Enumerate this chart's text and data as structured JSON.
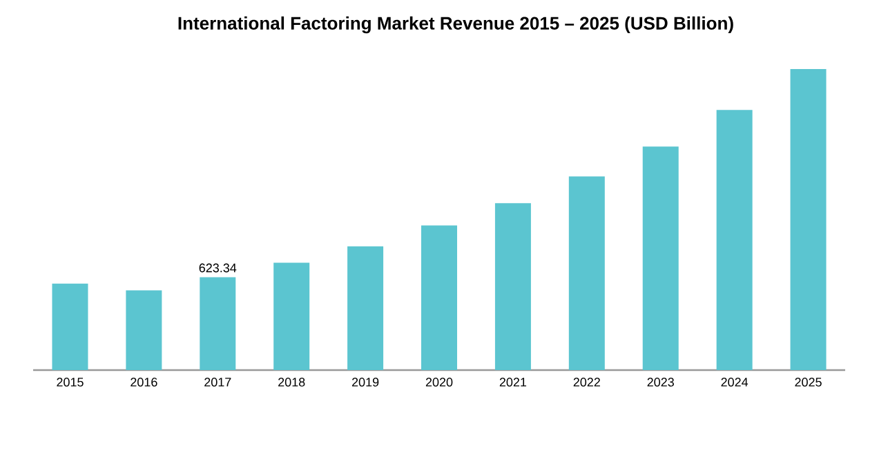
{
  "chart_data": {
    "type": "bar",
    "title": "International Factoring Market Revenue 2015 – 2025 (USD Billion)",
    "categories": [
      "2015",
      "2016",
      "2017",
      "2018",
      "2019",
      "2020",
      "2021",
      "2022",
      "2023",
      "2024",
      "2025"
    ],
    "values": [
      580,
      535,
      623.34,
      720,
      830,
      970,
      1120,
      1300,
      1500,
      1745,
      2020
    ],
    "value_labels": [
      null,
      null,
      "623.34",
      null,
      null,
      null,
      null,
      null,
      null,
      null,
      null
    ],
    "color": "#5bc5d0"
  }
}
